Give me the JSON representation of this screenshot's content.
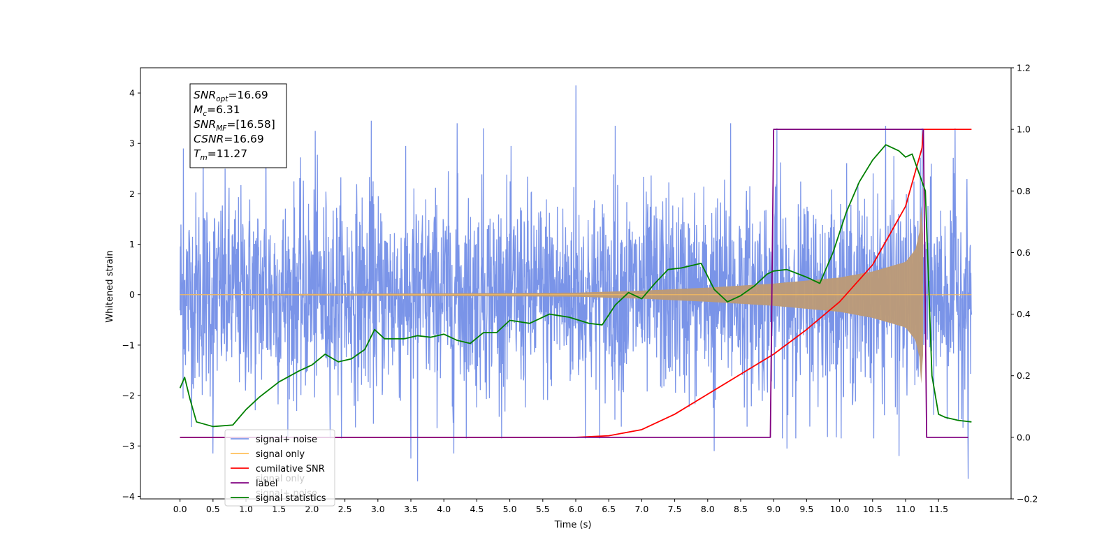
{
  "chart_data": {
    "type": "line",
    "xlabel": "Time (s)",
    "ylabel_left": "Whitened strain",
    "ylabel_right": "",
    "xlim": [
      -0.6,
      12.6
    ],
    "ylim_left": [
      -4.05,
      4.5
    ],
    "ylim_right": [
      -0.2,
      1.2
    ],
    "x_ticks": [
      "0.0",
      "0.5",
      "1.0",
      "1.5",
      "2.0",
      "2.5",
      "3.0",
      "3.5",
      "4.0",
      "4.5",
      "5.0",
      "5.5",
      "6.0",
      "6.5",
      "7.0",
      "7.5",
      "8.0",
      "8.5",
      "9.0",
      "9.5",
      "10.0",
      "10.5",
      "11.0",
      "11.5"
    ],
    "y_ticks_left": [
      "4",
      "3",
      "2",
      "1",
      "0",
      "−1",
      "−2",
      "−3",
      "−4"
    ],
    "y_ticks_right": [
      "1.2",
      "1.0",
      "0.8",
      "0.6",
      "0.4",
      "0.2",
      "0.0",
      "−0.2"
    ],
    "annotation": [
      {
        "base": "SNR",
        "sub": "opt",
        "value": "=16.69"
      },
      {
        "base": "M",
        "sub": "c",
        "value": "=6.31"
      },
      {
        "base": "SNR",
        "sub": "MF",
        "value": "=[16.58]"
      },
      {
        "base": "CSNR",
        "sub": "",
        "value": "=16.69"
      },
      {
        "base": "T",
        "sub": "m",
        "value": "=11.27"
      }
    ],
    "legend": {
      "placement": "lower-left",
      "entries": [
        {
          "label": "signal+ noise",
          "color": "#7a94e8"
        },
        {
          "label": "signal only",
          "color": "#ffc05a"
        },
        {
          "label": "cumilative SNR",
          "color": "#ff0000"
        },
        {
          "label": "label",
          "color": "#800080"
        },
        {
          "label": "signal statistics",
          "color": "#008000"
        }
      ],
      "hidden_text": [
        "signal only",
        "signal+ noise"
      ]
    },
    "series": [
      {
        "name": "signal+ noise",
        "axis": "left",
        "color": "#7a94e8",
        "description_stats": {
          "x_start": 0.0,
          "x_end": 12.0,
          "typical_abs": 2.2,
          "peaks": [
            [
              0.05,
              2.9
            ],
            [
              0.35,
              3.1
            ],
            [
              1.3,
              3.3
            ],
            [
              2.05,
              3.25
            ],
            [
              2.9,
              3.45
            ],
            [
              4.2,
              3.4
            ],
            [
              4.6,
              3.3
            ],
            [
              6.0,
              4.15
            ],
            [
              6.6,
              3.35
            ],
            [
              8.35,
              3.4
            ],
            [
              9.05,
              3.3
            ],
            [
              10.7,
              3.35
            ],
            [
              11.25,
              3.3
            ],
            [
              11.75,
              3.3
            ]
          ],
          "troughs": [
            [
              0.5,
              -3.15
            ],
            [
              3.5,
              -3.25
            ],
            [
              3.6,
              -3.7
            ],
            [
              4.15,
              -3.15
            ],
            [
              8.1,
              -3.1
            ],
            [
              9.2,
              -3.05
            ],
            [
              10.9,
              -3.2
            ],
            [
              11.95,
              -3.65
            ]
          ]
        }
      },
      {
        "name": "signal only",
        "axis": "left",
        "color": "#ffc05a",
        "envelope": [
          [
            0.0,
            0.005
          ],
          [
            6.0,
            0.04
          ],
          [
            7.0,
            0.08
          ],
          [
            8.0,
            0.14
          ],
          [
            9.0,
            0.22
          ],
          [
            9.5,
            0.28
          ],
          [
            10.0,
            0.34
          ],
          [
            10.5,
            0.46
          ],
          [
            11.0,
            0.65
          ],
          [
            11.15,
            0.9
          ],
          [
            11.22,
            1.3
          ],
          [
            11.26,
            2.4
          ],
          [
            11.27,
            0.0
          ],
          [
            12.0,
            0.0
          ]
        ]
      },
      {
        "name": "cumilative SNR",
        "axis": "right",
        "color": "#ff0000",
        "points": [
          [
            0.0,
            0.0
          ],
          [
            6.0,
            0.0
          ],
          [
            6.5,
            0.005
          ],
          [
            7.0,
            0.025
          ],
          [
            7.5,
            0.075
          ],
          [
            8.0,
            0.14
          ],
          [
            8.5,
            0.205
          ],
          [
            9.0,
            0.27
          ],
          [
            9.5,
            0.35
          ],
          [
            10.0,
            0.44
          ],
          [
            10.5,
            0.56
          ],
          [
            11.0,
            0.75
          ],
          [
            11.25,
            0.94
          ],
          [
            11.27,
            1.0
          ],
          [
            12.0,
            1.0
          ]
        ]
      },
      {
        "name": "label",
        "axis": "right",
        "color": "#800080",
        "points": [
          [
            0.0,
            0.0
          ],
          [
            8.95,
            0.0
          ],
          [
            9.0,
            1.0
          ],
          [
            11.27,
            1.0
          ],
          [
            11.32,
            0.0
          ],
          [
            11.95,
            0.0
          ]
        ]
      },
      {
        "name": "signal statistics",
        "axis": "right",
        "color": "#008000",
        "points": [
          [
            0.0,
            0.16
          ],
          [
            0.07,
            0.195
          ],
          [
            0.15,
            0.125
          ],
          [
            0.25,
            0.05
          ],
          [
            0.5,
            0.035
          ],
          [
            0.8,
            0.04
          ],
          [
            1.0,
            0.09
          ],
          [
            1.2,
            0.13
          ],
          [
            1.5,
            0.18
          ],
          [
            1.8,
            0.215
          ],
          [
            2.0,
            0.235
          ],
          [
            2.2,
            0.27
          ],
          [
            2.4,
            0.245
          ],
          [
            2.6,
            0.255
          ],
          [
            2.8,
            0.285
          ],
          [
            2.95,
            0.35
          ],
          [
            3.1,
            0.32
          ],
          [
            3.4,
            0.32
          ],
          [
            3.6,
            0.33
          ],
          [
            3.8,
            0.325
          ],
          [
            4.0,
            0.335
          ],
          [
            4.2,
            0.315
          ],
          [
            4.4,
            0.305
          ],
          [
            4.6,
            0.34
          ],
          [
            4.8,
            0.34
          ],
          [
            5.0,
            0.38
          ],
          [
            5.3,
            0.37
          ],
          [
            5.6,
            0.4
          ],
          [
            5.9,
            0.39
          ],
          [
            6.2,
            0.37
          ],
          [
            6.4,
            0.365
          ],
          [
            6.6,
            0.43
          ],
          [
            6.8,
            0.47
          ],
          [
            7.0,
            0.45
          ],
          [
            7.2,
            0.5
          ],
          [
            7.4,
            0.545
          ],
          [
            7.6,
            0.55
          ],
          [
            7.9,
            0.565
          ],
          [
            8.1,
            0.48
          ],
          [
            8.3,
            0.44
          ],
          [
            8.5,
            0.46
          ],
          [
            8.7,
            0.49
          ],
          [
            8.9,
            0.53
          ],
          [
            9.0,
            0.54
          ],
          [
            9.2,
            0.545
          ],
          [
            9.5,
            0.52
          ],
          [
            9.7,
            0.5
          ],
          [
            9.9,
            0.6
          ],
          [
            10.1,
            0.73
          ],
          [
            10.3,
            0.83
          ],
          [
            10.5,
            0.9
          ],
          [
            10.7,
            0.95
          ],
          [
            10.9,
            0.93
          ],
          [
            11.0,
            0.91
          ],
          [
            11.1,
            0.92
          ],
          [
            11.3,
            0.8
          ],
          [
            11.4,
            0.2
          ],
          [
            11.5,
            0.075
          ],
          [
            11.6,
            0.065
          ],
          [
            11.8,
            0.055
          ],
          [
            12.0,
            0.05
          ]
        ]
      }
    ]
  }
}
